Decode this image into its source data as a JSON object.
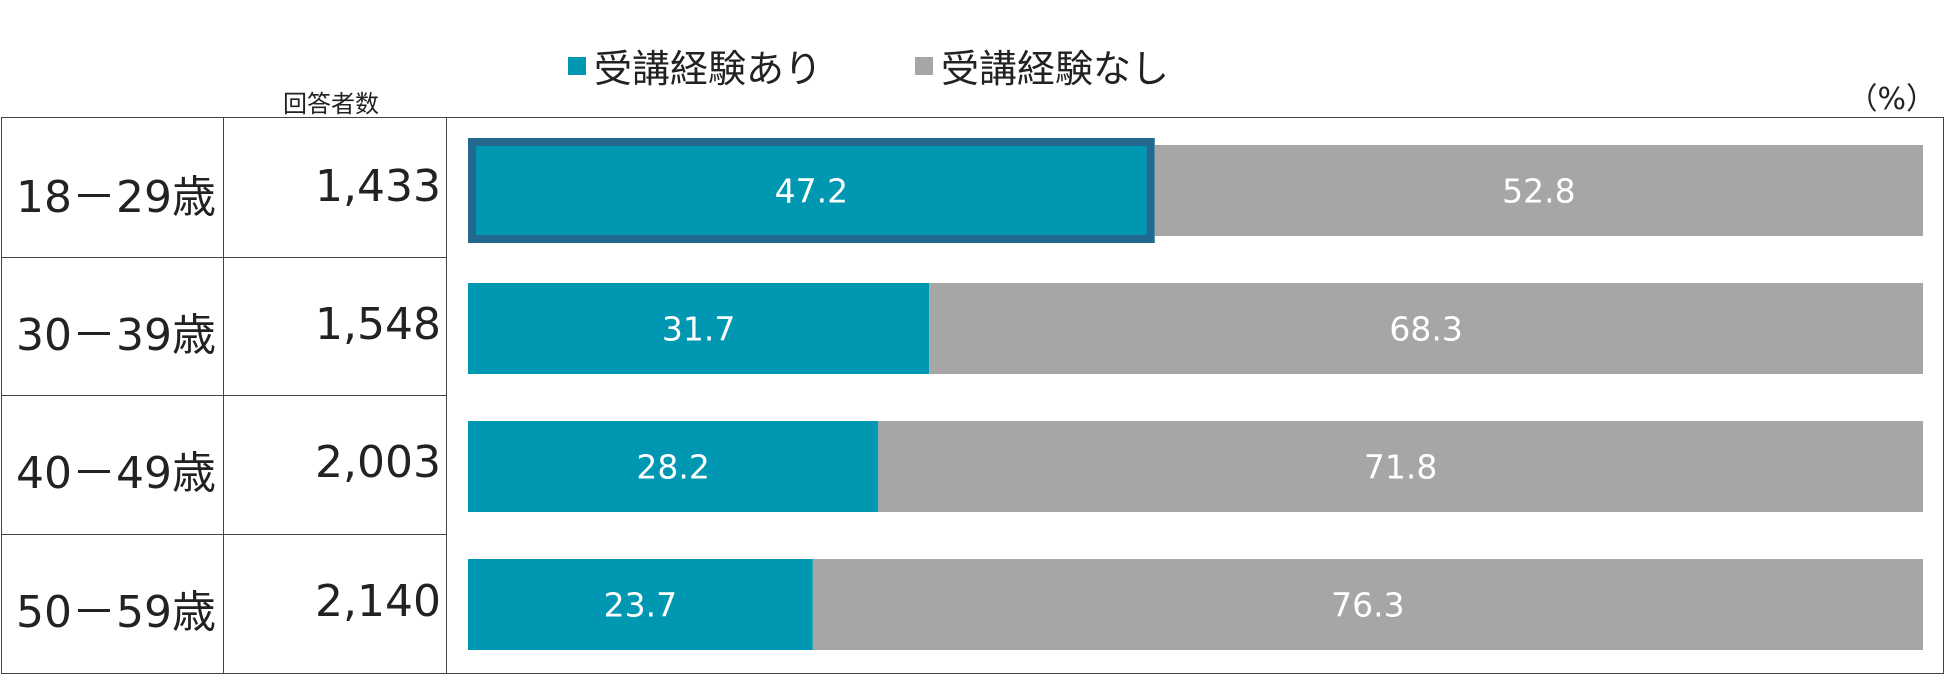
{
  "chart_data": {
    "type": "bar",
    "orientation": "horizontal",
    "stacked": true,
    "unit": "（%）",
    "count_header": "回答者数",
    "categories": [
      "18－29歳",
      "30－39歳",
      "40－49歳",
      "50－59歳"
    ],
    "counts": [
      "1,433",
      "1,548",
      "2,003",
      "2,140"
    ],
    "series": [
      {
        "name": "受講経験あり",
        "color": "#0097b2",
        "values": [
          47.2,
          31.7,
          28.2,
          23.7
        ]
      },
      {
        "name": "受講経験なし",
        "color": "#a6a6a6",
        "values": [
          52.8,
          68.3,
          71.8,
          76.3
        ]
      }
    ],
    "xlim": [
      0,
      100
    ],
    "highlight": {
      "row": 0,
      "series": 0,
      "color": "#23698f"
    },
    "legend": "top"
  }
}
